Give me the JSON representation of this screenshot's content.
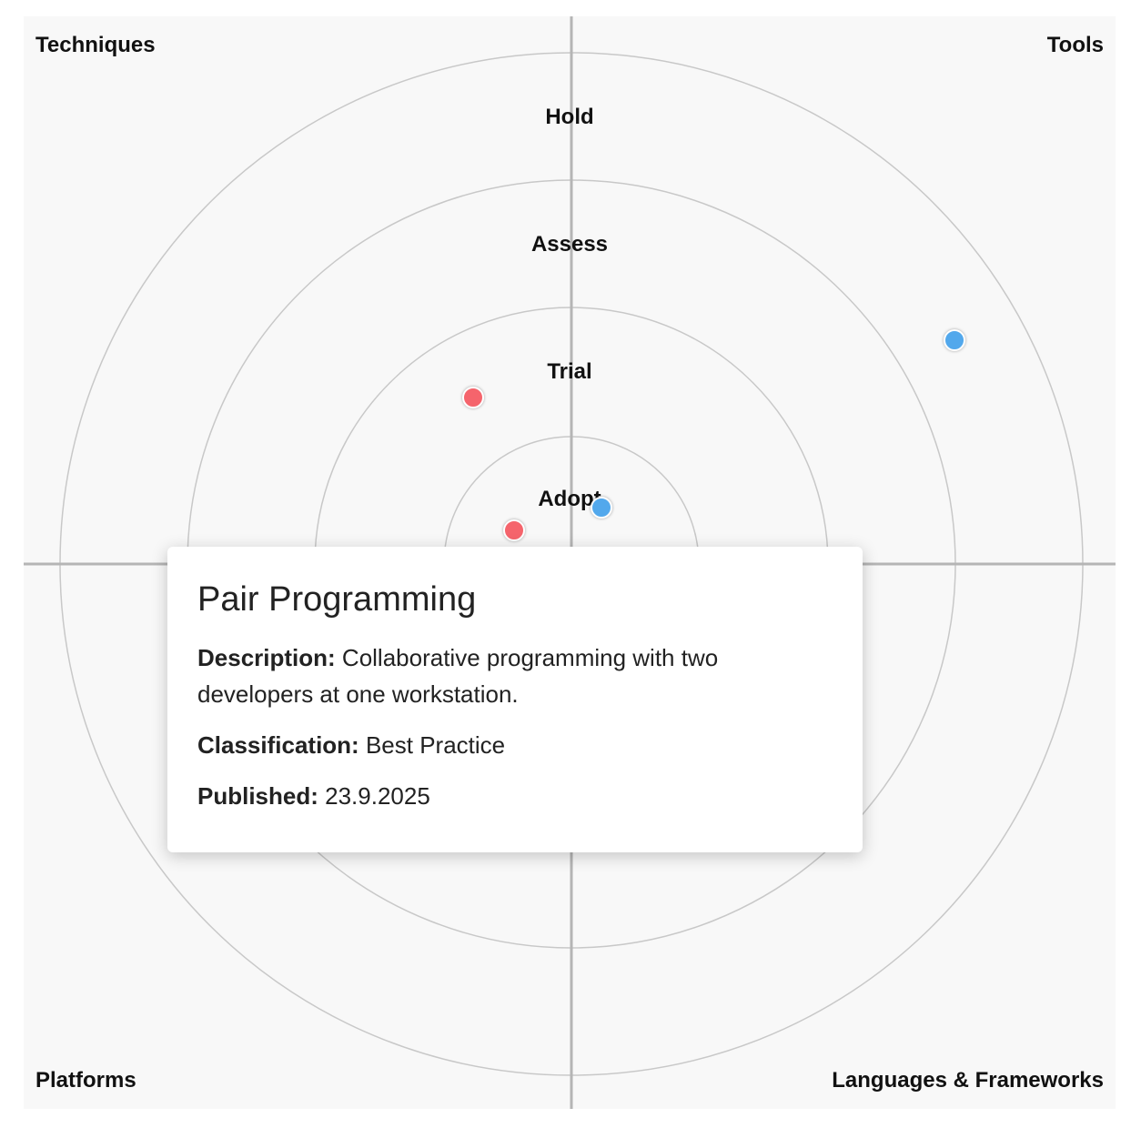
{
  "quadrants": {
    "top_left": "Techniques",
    "top_right": "Tools",
    "bottom_left": "Platforms",
    "bottom_right": "Languages & Frameworks"
  },
  "rings": {
    "hold": "Hold",
    "assess": "Assess",
    "trial": "Trial",
    "adopt": "Adopt"
  },
  "blips": [
    {
      "color": "#f5646c"
    },
    {
      "color": "#f5646c"
    },
    {
      "color": "#52a8ec"
    },
    {
      "color": "#52a8ec"
    }
  ],
  "tooltip": {
    "title": "Pair Programming",
    "description_label": "Description:",
    "description": "Collaborative programming with two developers at one workstation.",
    "classification_label": "Classification:",
    "classification": "Best Practice",
    "published_label": "Published:",
    "published": "23.9.2025"
  },
  "colors": {
    "background": "#f8f8f8",
    "ring_stroke": "#c8c8c8",
    "axis_stroke": "#b5b5b5",
    "techniques_blip": "#f5646c",
    "tools_blip": "#52a8ec"
  }
}
